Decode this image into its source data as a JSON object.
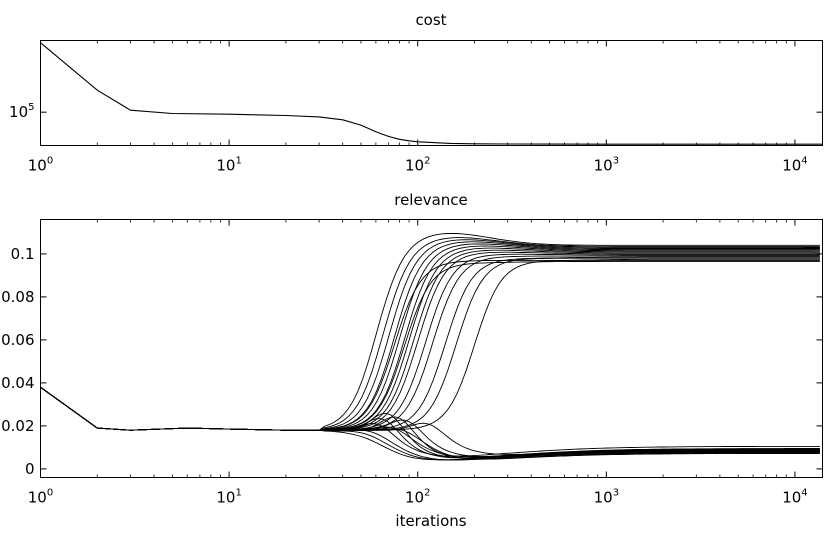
{
  "chart_data": [
    {
      "type": "line",
      "title": "cost",
      "xlabel": "",
      "ylabel": "",
      "x_scale": "log",
      "y_scale": "log",
      "xlim": [
        1,
        14000
      ],
      "ylim": [
        60000,
        300000
      ],
      "grid": false,
      "x_ticks": [
        {
          "value": 1,
          "base": "10",
          "exp": "0"
        },
        {
          "value": 10,
          "base": "10",
          "exp": "1"
        },
        {
          "value": 100,
          "base": "10",
          "exp": "2"
        },
        {
          "value": 1000,
          "base": "10",
          "exp": "3"
        },
        {
          "value": 10000,
          "base": "10",
          "exp": "4"
        }
      ],
      "y_ticks": [
        {
          "value": 100000,
          "base": "10",
          "exp": "5"
        }
      ],
      "series": [
        {
          "x": [
            1,
            2,
            3,
            5,
            10,
            20,
            30,
            40,
            50,
            60,
            70,
            80,
            90,
            100,
            150,
            200,
            300,
            500,
            1000,
            2000,
            5000,
            14000
          ],
          "values": [
            290000,
            140000,
            103000,
            98000,
            97000,
            95000,
            93000,
            89000,
            82000,
            74000,
            69000,
            66000,
            64500,
            63500,
            62000,
            61600,
            61400,
            61300,
            61200,
            61200,
            61200,
            61200
          ]
        }
      ]
    },
    {
      "type": "line",
      "title": "relevance",
      "xlabel": "iterations",
      "ylabel": "",
      "x_scale": "log",
      "xlim": [
        1,
        14000
      ],
      "ylim": [
        -0.004,
        0.116
      ],
      "grid": false,
      "x_ticks": [
        {
          "value": 1,
          "base": "10",
          "exp": "0"
        },
        {
          "value": 10,
          "base": "10",
          "exp": "1"
        },
        {
          "value": 100,
          "base": "10",
          "exp": "2"
        },
        {
          "value": 1000,
          "base": "10",
          "exp": "3"
        },
        {
          "value": 10000,
          "base": "10",
          "exp": "4"
        }
      ],
      "y_ticks": [
        {
          "value": 0,
          "label": "0"
        },
        {
          "value": 0.02,
          "label": "0.02"
        },
        {
          "value": 0.04,
          "label": "0.04"
        },
        {
          "value": 0.06,
          "label": "0.06"
        },
        {
          "value": 0.08,
          "label": "0.08"
        },
        {
          "value": 0.1,
          "label": "0.1"
        }
      ],
      "shared_start": {
        "x": [
          1,
          2,
          3,
          6,
          10,
          20,
          30
        ],
        "values": [
          0.038,
          0.019,
          0.018,
          0.019,
          0.0185,
          0.018,
          0.018
        ]
      },
      "series": [
        {
          "final": 0.104,
          "x_mid": 60,
          "peak": 0.11
        },
        {
          "final": 0.1035,
          "x_mid": 65,
          "peak": 0.108
        },
        {
          "final": 0.103,
          "x_mid": 70,
          "peak": 0.107
        },
        {
          "final": 0.1025,
          "x_mid": 75,
          "peak": 0.106
        },
        {
          "final": 0.102,
          "x_mid": 80,
          "peak": 0.105
        },
        {
          "final": 0.1015,
          "x_mid": 85,
          "peak": 0.104
        },
        {
          "final": 0.101,
          "x_mid": 90,
          "peak": 0.103
        },
        {
          "final": 0.1005,
          "x_mid": 95,
          "peak": 0.102
        },
        {
          "final": 0.1,
          "x_mid": 100,
          "peak": 0.101
        },
        {
          "final": 0.0995,
          "x_mid": 110,
          "peak": 0.1
        },
        {
          "final": 0.099,
          "x_mid": 120,
          "peak": 0.099
        },
        {
          "final": 0.0985,
          "x_mid": 140,
          "peak": 0.098
        },
        {
          "final": 0.098,
          "x_mid": 160,
          "peak": 0.098
        },
        {
          "final": 0.0975,
          "x_mid": 200,
          "peak": 0.097
        },
        {
          "final": 0.097,
          "x_mid": 75,
          "peak": 0.097
        },
        {
          "final": 0.0965,
          "x_mid": 85,
          "peak": 0.096
        },
        {
          "final": 0.0105,
          "x_mid": 70,
          "dip": 0.003,
          "bump": 0.024
        },
        {
          "final": 0.0095,
          "x_mid": 75,
          "dip": 0.002,
          "bump": 0.027
        },
        {
          "final": 0.009,
          "x_mid": 80,
          "dip": 0.002,
          "bump": 0.03
        },
        {
          "final": 0.0085,
          "x_mid": 90,
          "dip": 0.0015,
          "bump": 0.028
        },
        {
          "final": 0.008,
          "x_mid": 60,
          "dip": 0.002,
          "bump": 0.019
        },
        {
          "final": 0.0075,
          "x_mid": 65,
          "dip": 0.002,
          "bump": 0.02
        },
        {
          "final": 0.0078,
          "x_mid": 100,
          "dip": 0.003,
          "bump": 0.026
        },
        {
          "final": 0.0082,
          "x_mid": 130,
          "dip": 0.004,
          "bump": 0.024
        },
        {
          "final": 0.0088,
          "x_mid": 55,
          "dip": 0.002,
          "bump": 0.018
        },
        {
          "final": 0.0092,
          "x_mid": 85,
          "dip": 0.0025,
          "bump": 0.022
        },
        {
          "final": 0.0072,
          "x_mid": 95,
          "dip": 0.0015,
          "bump": 0.021
        }
      ]
    }
  ]
}
